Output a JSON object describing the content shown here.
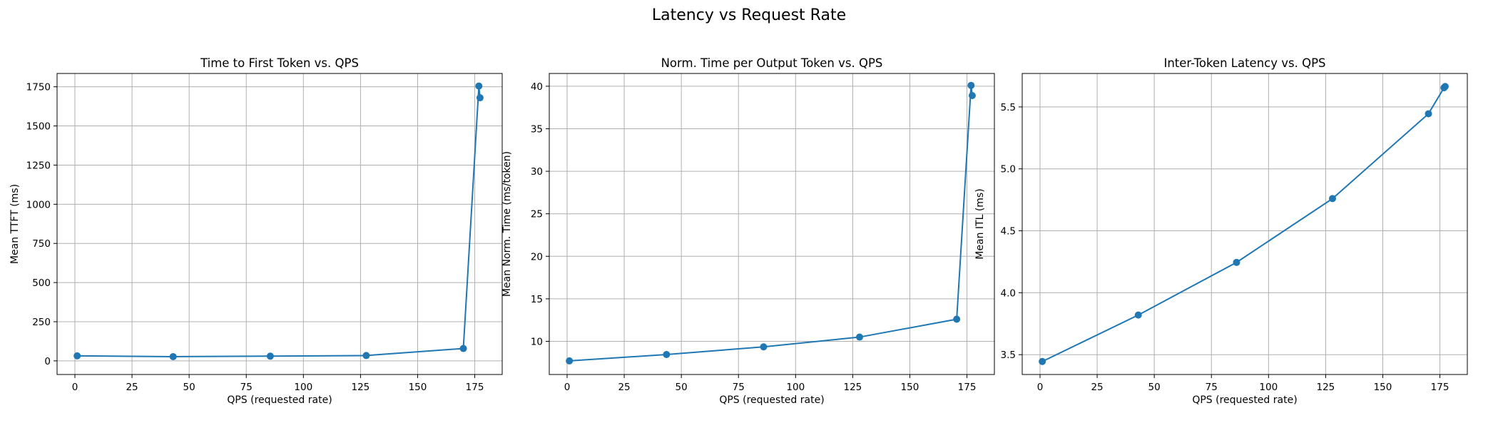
{
  "figure": {
    "title": "Latency vs Request Rate"
  },
  "chart_data": [
    {
      "type": "line",
      "title": "Time to First Token vs. QPS",
      "xlabel": "QPS (requested rate)",
      "ylabel": "Mean TTFT (ms)",
      "xlim": [
        -7.8,
        187
      ],
      "ylim": [
        -87,
        1835
      ],
      "xticks": [
        0,
        25,
        50,
        75,
        100,
        125,
        150,
        175
      ],
      "xtick_labels": [
        "0",
        "25",
        "50",
        "75",
        "100",
        "125",
        "150",
        "175"
      ],
      "yticks": [
        0,
        250,
        500,
        750,
        1000,
        1250,
        1500,
        1750
      ],
      "ytick_labels": [
        "0",
        "250",
        "500",
        "750",
        "1000",
        "1250",
        "1500",
        "1750"
      ],
      "grid": true,
      "color": "#1f77b4",
      "series": [
        {
          "x": [
            1,
            43,
            85.5,
            127.5,
            170,
            176.8,
            177.3
          ],
          "y": [
            32,
            27,
            30,
            34,
            79,
            1755,
            1680
          ]
        }
      ]
    },
    {
      "type": "line",
      "title": "Norm. Time per Output Token vs. QPS",
      "xlabel": "QPS (requested rate)",
      "ylabel": "Mean Norm. Time (ms/token)",
      "xlim": [
        -7.8,
        187
      ],
      "ylim": [
        6.1,
        41.5
      ],
      "xticks": [
        0,
        25,
        50,
        75,
        100,
        125,
        150,
        175
      ],
      "xtick_labels": [
        "0",
        "25",
        "50",
        "75",
        "100",
        "125",
        "150",
        "175"
      ],
      "yticks": [
        10,
        15,
        20,
        25,
        30,
        35,
        40
      ],
      "ytick_labels": [
        "10",
        "15",
        "20",
        "25",
        "30",
        "35",
        "40"
      ],
      "grid": true,
      "color": "#1f77b4",
      "series": [
        {
          "x": [
            1,
            43.5,
            86,
            128,
            170.5,
            176.8,
            177.3
          ],
          "y": [
            7.7,
            8.45,
            9.35,
            10.5,
            12.6,
            40.1,
            38.9
          ]
        }
      ]
    },
    {
      "type": "line",
      "title": "Inter-Token Latency vs. QPS",
      "xlabel": "QPS (requested rate)",
      "ylabel": "Mean ITL (ms)",
      "xlim": [
        -7.8,
        187
      ],
      "ylim": [
        3.34,
        5.77
      ],
      "xticks": [
        0,
        25,
        50,
        75,
        100,
        125,
        150,
        175
      ],
      "xtick_labels": [
        "0",
        "25",
        "50",
        "75",
        "100",
        "125",
        "150",
        "175"
      ],
      "yticks": [
        3.5,
        4.0,
        4.5,
        5.0,
        5.5
      ],
      "ytick_labels": [
        "3.5",
        "4.0",
        "4.5",
        "5.0",
        "5.5"
      ],
      "grid": true,
      "color": "#1f77b4",
      "series": [
        {
          "x": [
            1,
            43,
            86,
            128,
            170,
            176.8,
            177.3
          ],
          "y": [
            3.445,
            3.82,
            4.245,
            4.76,
            5.445,
            5.655,
            5.665
          ]
        }
      ]
    }
  ]
}
